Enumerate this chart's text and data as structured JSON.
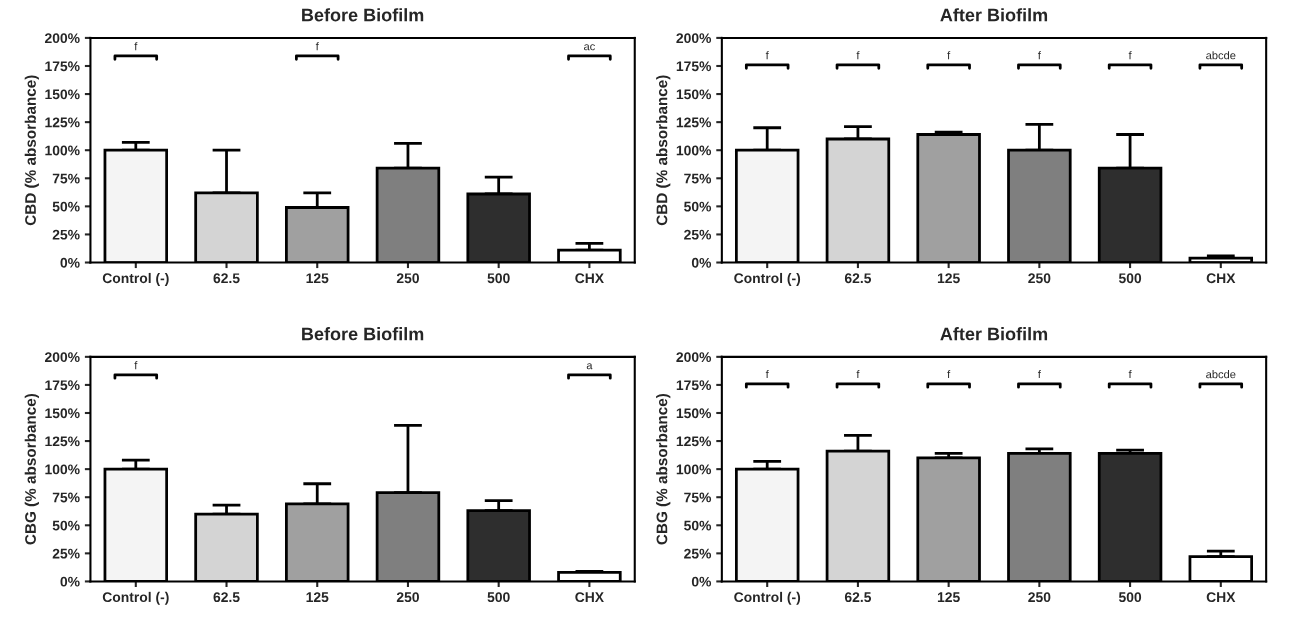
{
  "chart_data": [
    {
      "type": "bar",
      "title": "Before Biofilm",
      "ylabel": "CBD (% absorbance)",
      "categories": [
        "Control (-)",
        "62.5",
        "125",
        "250",
        "500",
        "CHX"
      ],
      "values": [
        100,
        62,
        49,
        84,
        61,
        11
      ],
      "errors": [
        [
          100,
          107
        ],
        [
          62,
          100
        ],
        [
          49,
          62
        ],
        [
          84,
          106
        ],
        [
          61,
          76
        ],
        [
          11,
          17
        ]
      ],
      "colors": [
        "#f4f4f4",
        "#d4d4d4",
        "#a0a0a0",
        "#7f7f7f",
        "#2e2e2e",
        "#ffffff"
      ],
      "ylim": [
        0,
        200
      ],
      "yticks": [
        {
          "value": 0,
          "label": "0%"
        },
        {
          "value": 25,
          "label": "25%"
        },
        {
          "value": 50,
          "label": "50%"
        },
        {
          "value": 75,
          "label": "75%"
        },
        {
          "value": 100,
          "label": "100%"
        },
        {
          "value": 125,
          "label": "125%"
        },
        {
          "value": 150,
          "label": "150%"
        },
        {
          "value": 175,
          "label": "175%"
        },
        {
          "value": 200,
          "label": "200%"
        }
      ],
      "grid": false,
      "legend": false,
      "annotations": [
        "f",
        null,
        "f",
        null,
        null,
        "ac"
      ]
    },
    {
      "type": "bar",
      "title": "After Biofilm",
      "ylabel": "CBD (% absorbance)",
      "categories": [
        "Control (-)",
        "62.5",
        "125",
        "250",
        "500",
        "CHX"
      ],
      "values": [
        100,
        110,
        114,
        100,
        84,
        4
      ],
      "errors": [
        [
          100,
          120
        ],
        [
          110,
          121
        ],
        [
          114,
          116
        ],
        [
          100,
          123
        ],
        [
          84,
          114
        ],
        [
          4,
          6
        ]
      ],
      "colors": [
        "#f4f4f4",
        "#d4d4d4",
        "#a0a0a0",
        "#7f7f7f",
        "#2e2e2e",
        "#ffffff"
      ],
      "ylim": [
        0,
        200
      ],
      "yticks": [
        {
          "value": 0,
          "label": "0%"
        },
        {
          "value": 25,
          "label": "25%"
        },
        {
          "value": 50,
          "label": "50%"
        },
        {
          "value": 75,
          "label": "75%"
        },
        {
          "value": 100,
          "label": "100%"
        },
        {
          "value": 125,
          "label": "125%"
        },
        {
          "value": 150,
          "label": "150%"
        },
        {
          "value": 175,
          "label": "175%"
        },
        {
          "value": 200,
          "label": "200%"
        }
      ],
      "grid": false,
      "legend": false,
      "annotations": [
        "f",
        "f",
        "f",
        "f",
        "f",
        "abcde"
      ]
    },
    {
      "type": "bar",
      "title": "Before Biofilm",
      "ylabel": "CBG (% absorbance)",
      "categories": [
        "Control (-)",
        "62.5",
        "125",
        "250",
        "500",
        "CHX"
      ],
      "values": [
        100,
        60,
        69,
        79,
        63,
        8
      ],
      "errors": [
        [
          100,
          108
        ],
        [
          60,
          68
        ],
        [
          69,
          87
        ],
        [
          79,
          139
        ],
        [
          63,
          72
        ],
        [
          8,
          9
        ]
      ],
      "colors": [
        "#f4f4f4",
        "#d4d4d4",
        "#a0a0a0",
        "#7f7f7f",
        "#2e2e2e",
        "#ffffff"
      ],
      "ylim": [
        0,
        200
      ],
      "yticks": [
        {
          "value": 0,
          "label": "0%"
        },
        {
          "value": 25,
          "label": "25%"
        },
        {
          "value": 50,
          "label": "50%"
        },
        {
          "value": 75,
          "label": "75%"
        },
        {
          "value": 100,
          "label": "100%"
        },
        {
          "value": 125,
          "label": "125%"
        },
        {
          "value": 150,
          "label": "150%"
        },
        {
          "value": 175,
          "label": "175%"
        },
        {
          "value": 200,
          "label": "200%"
        }
      ],
      "grid": false,
      "legend": false,
      "annotations": [
        "f",
        null,
        null,
        null,
        null,
        "a"
      ]
    },
    {
      "type": "bar",
      "title": "After Biofilm",
      "ylabel": "CBG (% absorbance)",
      "categories": [
        "Control (-)",
        "62.5",
        "125",
        "250",
        "500",
        "CHX"
      ],
      "values": [
        100,
        116,
        110,
        114,
        114,
        22
      ],
      "errors": [
        [
          100,
          107
        ],
        [
          116,
          130
        ],
        [
          110,
          114
        ],
        [
          114,
          118
        ],
        [
          114,
          117
        ],
        [
          22,
          27
        ]
      ],
      "colors": [
        "#f4f4f4",
        "#d4d4d4",
        "#a0a0a0",
        "#7f7f7f",
        "#2e2e2e",
        "#ffffff"
      ],
      "ylim": [
        0,
        200
      ],
      "yticks": [
        {
          "value": 0,
          "label": "0%"
        },
        {
          "value": 25,
          "label": "25%"
        },
        {
          "value": 50,
          "label": "50%"
        },
        {
          "value": 75,
          "label": "75%"
        },
        {
          "value": 100,
          "label": "100%"
        },
        {
          "value": 125,
          "label": "125%"
        },
        {
          "value": 150,
          "label": "150%"
        },
        {
          "value": 175,
          "label": "175%"
        },
        {
          "value": 200,
          "label": "200%"
        }
      ],
      "grid": false,
      "legend": false,
      "annotations": [
        "f",
        "f",
        "f",
        "f",
        "f",
        "abcde"
      ]
    }
  ]
}
